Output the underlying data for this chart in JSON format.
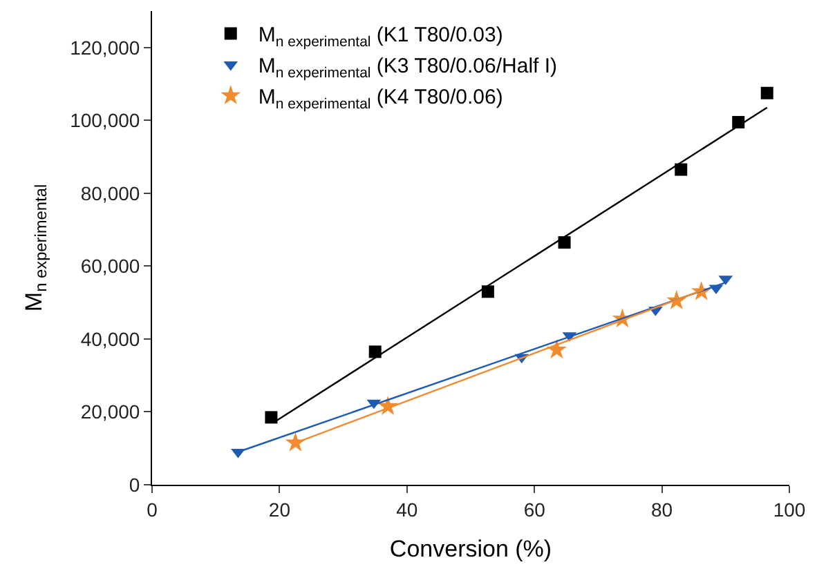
{
  "chart_data": {
    "type": "scatter",
    "xlabel": "Conversion (%)",
    "ylabel": "M$_{n experimental}$",
    "xlim": [
      0,
      100
    ],
    "xticks": [
      0,
      20,
      40,
      60,
      80,
      100
    ],
    "ylim": [
      0,
      130000
    ],
    "yticks": [
      0,
      {
        "value": 20000,
        "label": "20,000"
      },
      {
        "value": 40000,
        "label": "40,000"
      },
      {
        "value": 60000,
        "label": "60,000"
      },
      {
        "value": 80000,
        "label": "80,000"
      },
      {
        "value": 100000,
        "label": "100,000"
      },
      {
        "value": 120000,
        "label": "120,000"
      }
    ],
    "legend": "top left",
    "series": [
      {
        "name": "M$_{n experimental}$ (K1 T80/0.03)",
        "color": "#000000",
        "marker": "square",
        "x": [
          18.7,
          35,
          52.7,
          64.7,
          83,
          92,
          96.5
        ],
        "values": [
          18500,
          36500,
          53000,
          66500,
          86500,
          99500,
          107500
        ]
      },
      {
        "name": "M$_{n experimental}$ (K3 T80/0.06/Half I)",
        "color": "#1f5bb0",
        "marker": "triangle",
        "x": [
          13.5,
          34.8,
          58,
          65.5,
          79,
          88.5,
          90
        ],
        "values": [
          9000,
          22500,
          35000,
          41000,
          48000,
          54000,
          56500
        ]
      },
      {
        "name": "M$_{n experimental}$ (K4 T80/0.06)",
        "color": "#f28a2e",
        "marker": "star",
        "x": [
          22.5,
          37,
          63.5,
          73.8,
          82.3,
          86.2
        ],
        "values": [
          11500,
          21500,
          37000,
          45500,
          50500,
          53000
        ]
      },
      {
        "type": "line",
        "color": "#000000",
        "marker": "none",
        "x": [
          19,
          96.5
        ],
        "values": [
          17000,
          103500
        ]
      },
      {
        "type": "line",
        "color": "#1f5bb0",
        "marker": "none",
        "x": [
          13.5,
          90
        ],
        "values": [
          9000,
          55500
        ]
      },
      {
        "type": "line",
        "color": "#f28a2e",
        "marker": "none",
        "x": [
          22.5,
          86.5
        ],
        "values": [
          11500,
          53500
        ]
      }
    ]
  }
}
